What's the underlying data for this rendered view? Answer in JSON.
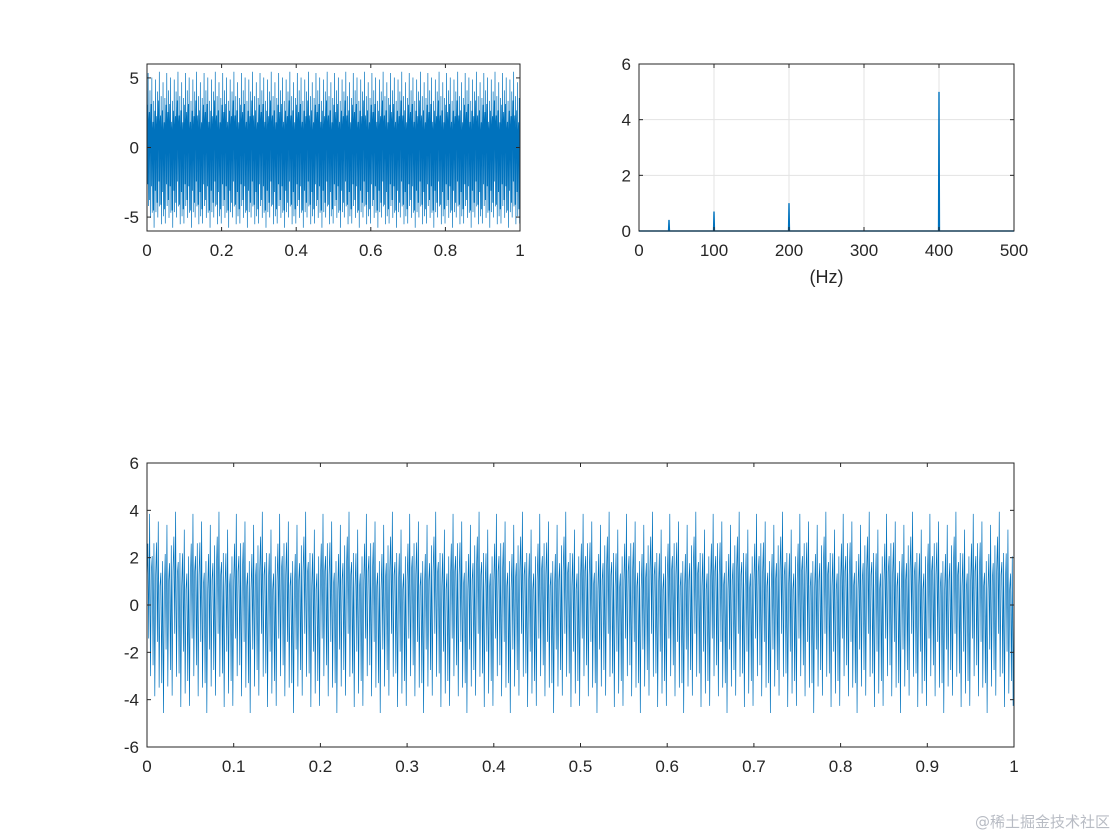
{
  "watermark": "@稀土掘金技术社区",
  "chart_data": [
    {
      "id": "time-signal",
      "type": "line",
      "title": "",
      "xlabel": "",
      "ylabel": "",
      "xlim": [
        0,
        1
      ],
      "ylim": [
        -6,
        6
      ],
      "xticks": [
        0,
        0.2,
        0.4,
        0.6,
        0.8,
        1
      ],
      "xtick_labels": [
        "0",
        "0.2",
        "0.4",
        "0.6",
        "0.8",
        "1"
      ],
      "yticks": [
        -5,
        0,
        5
      ],
      "ytick_labels": [
        "-5",
        "0",
        "5"
      ],
      "grid": false,
      "color": "#0072bd",
      "series": [
        {
          "sample_rate_hz": 1000,
          "components": [
            {
              "frequency_hz": 40,
              "amplitude": 0.4
            },
            {
              "frequency_hz": 100,
              "amplitude": 0.7
            },
            {
              "frequency_hz": 200,
              "amplitude": 1.0
            },
            {
              "frequency_hz": 400,
              "amplitude": 5.0
            }
          ]
        }
      ]
    },
    {
      "id": "spectrum",
      "type": "line",
      "title": "",
      "xlabel": "(Hz)",
      "ylabel": "",
      "xlim": [
        0,
        500
      ],
      "ylim": [
        0,
        6
      ],
      "xticks": [
        0,
        100,
        200,
        300,
        400,
        500
      ],
      "xtick_labels": [
        "0",
        "100",
        "200",
        "300",
        "400",
        "500"
      ],
      "yticks": [
        0,
        2,
        4,
        6
      ],
      "ytick_labels": [
        "0",
        "2",
        "4",
        "6"
      ],
      "grid": true,
      "color": "#0072bd",
      "series": [
        {
          "peaks": [
            {
              "x": 40,
              "y": 0.4
            },
            {
              "x": 100,
              "y": 0.7
            },
            {
              "x": 200,
              "y": 1.0
            },
            {
              "x": 400,
              "y": 5.0
            }
          ]
        }
      ]
    },
    {
      "id": "filtered-signal",
      "type": "line",
      "title": "",
      "xlabel": "",
      "ylabel": "",
      "xlim": [
        0,
        1
      ],
      "ylim": [
        -6,
        6
      ],
      "xticks": [
        0,
        0.1,
        0.2,
        0.3,
        0.4,
        0.5,
        0.6,
        0.7,
        0.8,
        0.9,
        1
      ],
      "xtick_labels": [
        "0",
        "0.1",
        "0.2",
        "0.3",
        "0.4",
        "0.5",
        "0.6",
        "0.7",
        "0.8",
        "0.9",
        "1"
      ],
      "yticks": [
        -6,
        -4,
        -2,
        0,
        2,
        4,
        6
      ],
      "ytick_labels": [
        "-6",
        "-4",
        "-2",
        "0",
        "2",
        "4",
        "6"
      ],
      "grid": false,
      "color": "#0072bd",
      "series": [
        {
          "sample_rate_hz": 1000,
          "components": [
            {
              "frequency_hz": 40,
              "amplitude": 0.4
            },
            {
              "frequency_hz": 100,
              "amplitude": 0.7
            },
            {
              "frequency_hz": 200,
              "amplitude": 1.0
            },
            {
              "frequency_hz": 400,
              "amplitude": 3.5
            }
          ]
        }
      ]
    }
  ]
}
